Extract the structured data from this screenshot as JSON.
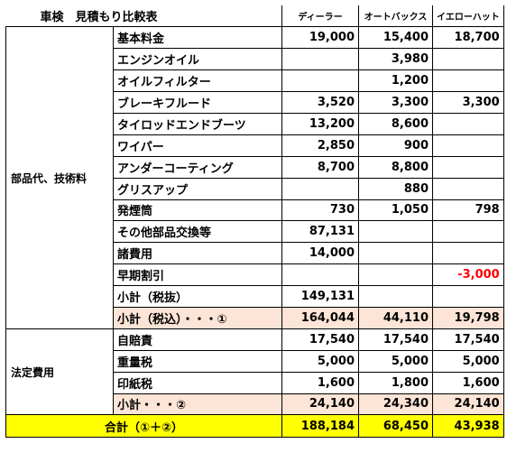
{
  "header": {
    "title": "車検　見積もり比較表",
    "shops": [
      "ディーラー",
      "オートバックス",
      "イエローハット"
    ]
  },
  "parts": {
    "category": "部品代、技術料",
    "rows": [
      {
        "label": "基本料金",
        "values": [
          "19,000",
          "15,400",
          "18,700"
        ]
      },
      {
        "label": "エンジンオイル",
        "values": [
          "",
          "3,980",
          ""
        ]
      },
      {
        "label": "オイルフィルター",
        "values": [
          "",
          "1,200",
          ""
        ]
      },
      {
        "label": "ブレーキフルード",
        "values": [
          "3,520",
          "3,300",
          "3,300"
        ]
      },
      {
        "label": "タイロッドエンドブーツ",
        "values": [
          "13,200",
          "8,600",
          ""
        ]
      },
      {
        "label": "ワイパー",
        "values": [
          "2,850",
          "900",
          ""
        ]
      },
      {
        "label": "アンダーコーティング",
        "values": [
          "8,700",
          "8,800",
          ""
        ]
      },
      {
        "label": "グリスアップ",
        "values": [
          "",
          "880",
          ""
        ]
      },
      {
        "label": "発煙筒",
        "values": [
          "730",
          "1,050",
          "798"
        ]
      },
      {
        "label": "その他部品交換等",
        "values": [
          "87,131",
          "",
          ""
        ]
      },
      {
        "label": "諸費用",
        "values": [
          "14,000",
          "",
          ""
        ]
      },
      {
        "label": "早期割引",
        "values": [
          "",
          "",
          "-3,000"
        ]
      },
      {
        "label": "小計（税抜）",
        "values": [
          "149,131",
          "",
          ""
        ]
      }
    ],
    "subtotal": {
      "label": "小計（税込）・・・①",
      "values": [
        "164,044",
        "44,110",
        "19,798"
      ]
    }
  },
  "legal": {
    "category": "法定費用",
    "rows": [
      {
        "label": "自賠責",
        "values": [
          "17,540",
          "17,540",
          "17,540"
        ]
      },
      {
        "label": "重量税",
        "values": [
          "5,000",
          "5,000",
          "5,000"
        ]
      },
      {
        "label": "印紙税",
        "values": [
          "1,600",
          "1,800",
          "1,600"
        ]
      }
    ],
    "subtotal": {
      "label": "小計・・・②",
      "values": [
        "24,140",
        "24,340",
        "24,140"
      ]
    }
  },
  "total": {
    "label": "合計（①＋②）",
    "values": [
      "188,184",
      "68,450",
      "43,938"
    ]
  },
  "colors": {
    "subtotal_bg": "#fce4d6",
    "total_bg": "#ffff00",
    "negative": "#ff0000"
  }
}
